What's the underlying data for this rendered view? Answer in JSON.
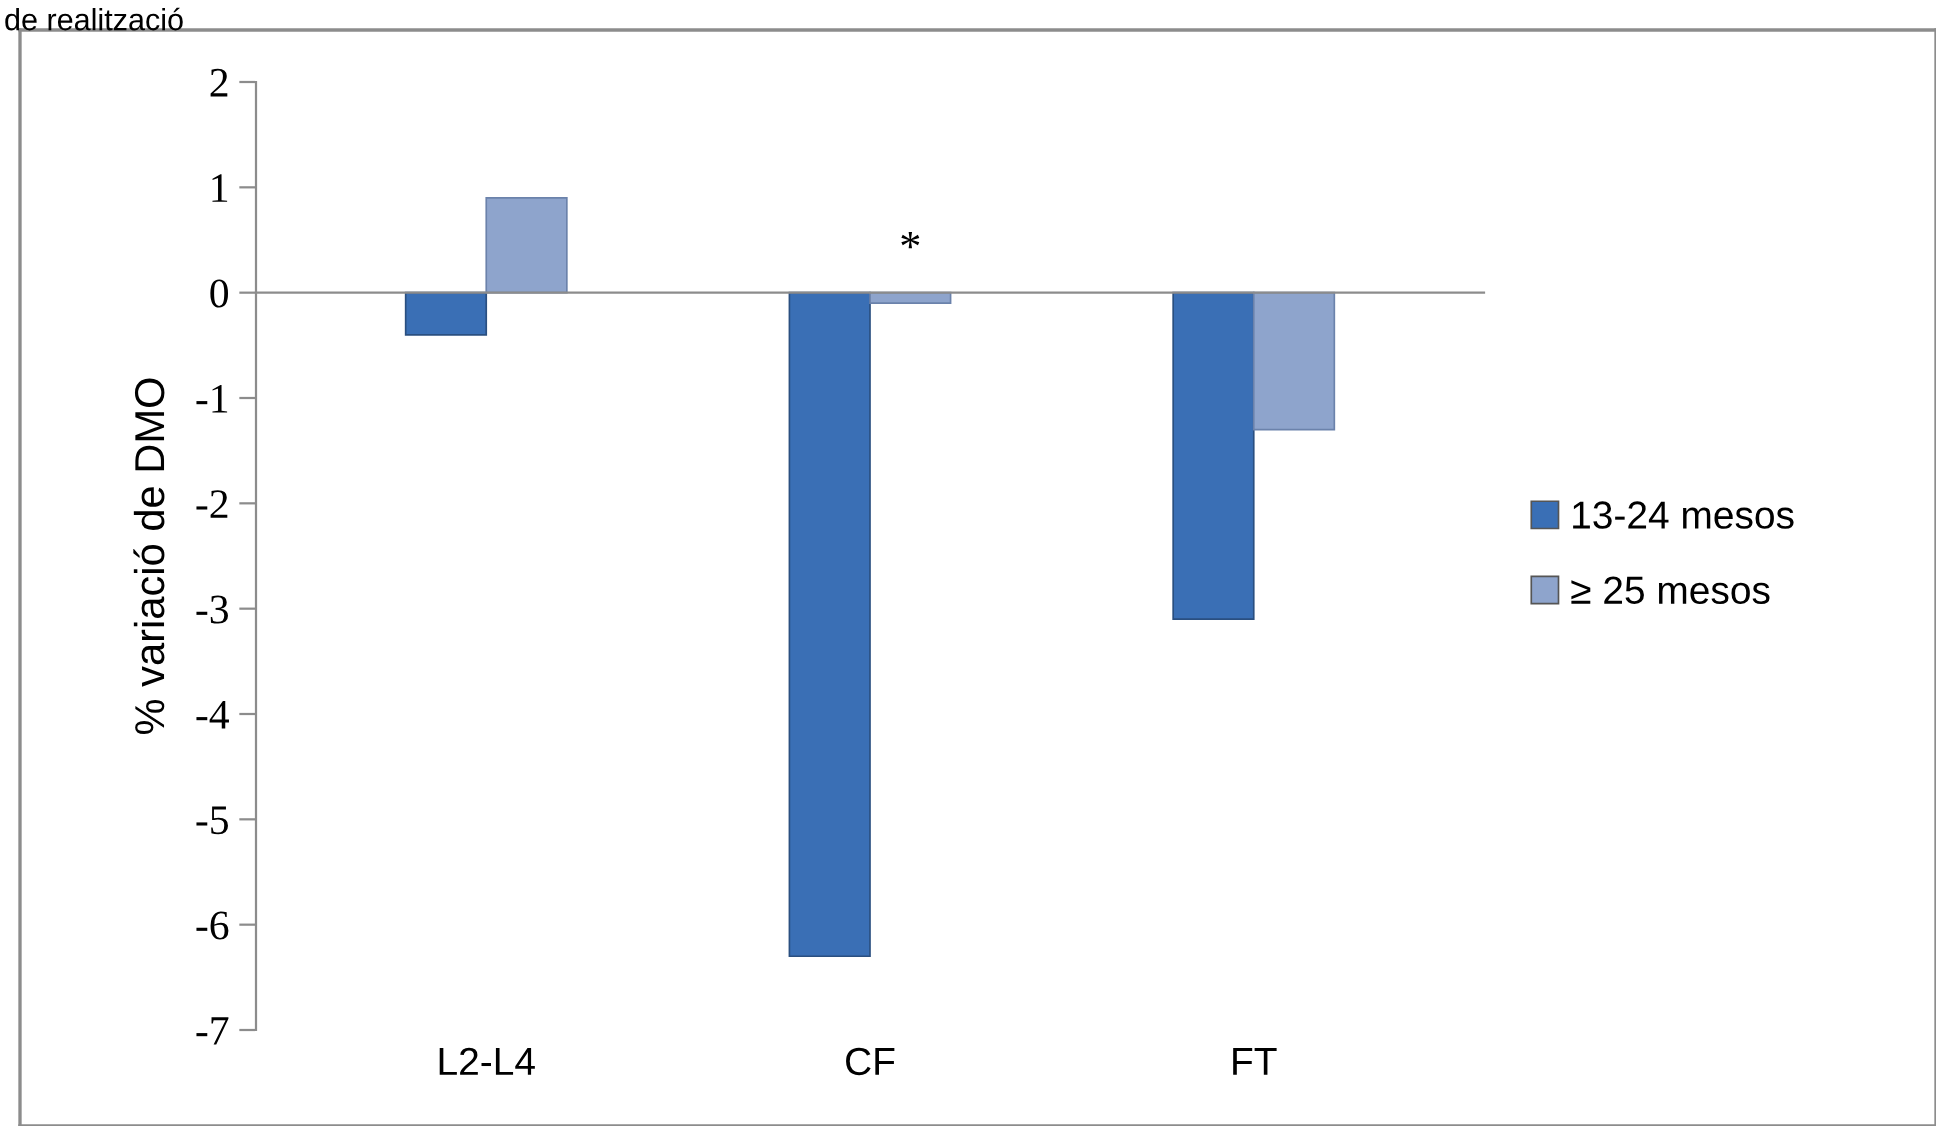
{
  "chart_data": {
    "type": "bar",
    "title": "de realització",
    "ylabel": "% variació de DMO",
    "categories": [
      "L2-L4",
      "CF",
      "FT"
    ],
    "series": [
      {
        "name": "13-24 mesos",
        "color": "#3a6fb5",
        "values": [
          -0.4,
          -6.3,
          -3.1
        ]
      },
      {
        "name": "≥ 25 mesos",
        "color": "#8ea4cc",
        "values": [
          0.9,
          -0.1,
          -1.3
        ]
      }
    ],
    "ylim": [
      -7,
      2
    ],
    "yticks": [
      -7,
      -6,
      -5,
      -4,
      -3,
      -2,
      -1,
      0,
      1,
      2
    ],
    "annotations": [
      "*"
    ],
    "legend": "right"
  }
}
